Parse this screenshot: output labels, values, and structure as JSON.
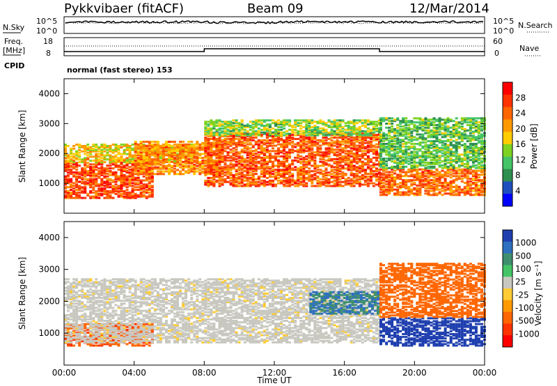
{
  "header": {
    "radar": "Pykkvibaer (fitACF)",
    "beam": "Beam 09",
    "date": "12/Mar/2014"
  },
  "noise_panel": {
    "left_label": "N.Sky",
    "right_label": "N.Search",
    "left_ticks": [
      "10^5",
      "10^0"
    ],
    "right_ticks": [
      "10^5",
      "10^0"
    ]
  },
  "freq_panel": {
    "left_label_1": "Freq.",
    "left_label_2": "[MHz]",
    "right_label": "Nave",
    "left_ticks": [
      "18",
      "8"
    ],
    "right_ticks": [
      "60",
      "0"
    ]
  },
  "cpid": {
    "label": "CPID",
    "text": "normal (fast stereo) 153"
  },
  "chart_data": [
    {
      "type": "heatmap",
      "name": "power",
      "xlabel": "Time UT",
      "ylabel": "Slant Range [km]",
      "colorbar_label": "Power [dB]",
      "x_ticks": [
        "00:00",
        "04:00",
        "08:00",
        "12:00",
        "16:00",
        "20:00",
        "00:00"
      ],
      "xlim_hours": [
        0,
        24
      ],
      "ylim": [
        0,
        4500
      ],
      "y_ticks": [
        "1000",
        "2000",
        "3000",
        "4000"
      ],
      "colorbar_ticks": [
        "4",
        "8",
        "12",
        "16",
        "20",
        "24",
        "28"
      ],
      "colorbar_range": [
        0,
        32
      ],
      "colors": [
        "#0000ff",
        "#1f4fbf",
        "#2f8f4f",
        "#44c466",
        "#7ed321",
        "#ffcc00",
        "#ff9900",
        "#ff6600",
        "#ff3300",
        "#ff0000"
      ],
      "echo_bands": [
        {
          "t_start": 0.0,
          "t_end": 5.0,
          "r_low": 500,
          "r_high": 1700,
          "level": 26
        },
        {
          "t_start": 0.0,
          "t_end": 7.5,
          "r_low": 1700,
          "r_high": 2300,
          "level": 18
        },
        {
          "t_start": 4.0,
          "t_end": 9.0,
          "r_low": 1300,
          "r_high": 2400,
          "level": 22
        },
        {
          "t_start": 8.0,
          "t_end": 18.0,
          "r_low": 900,
          "r_high": 2700,
          "level": 25
        },
        {
          "t_start": 8.0,
          "t_end": 18.0,
          "r_low": 2600,
          "r_high": 3100,
          "level": 14
        },
        {
          "t_start": 18.0,
          "t_end": 24.0,
          "r_low": 600,
          "r_high": 1500,
          "level": 24
        },
        {
          "t_start": 18.0,
          "t_end": 24.0,
          "r_low": 1500,
          "r_high": 3200,
          "level": 12
        }
      ]
    },
    {
      "type": "heatmap",
      "name": "velocity",
      "xlabel": "Time UT",
      "ylabel": "Slant Range [km]",
      "colorbar_label": "Velocity [m s⁻¹]",
      "x_ticks": [
        "00:00",
        "04:00",
        "08:00",
        "12:00",
        "16:00",
        "20:00",
        "00:00"
      ],
      "xlim_hours": [
        0,
        24
      ],
      "ylim": [
        0,
        4500
      ],
      "y_ticks": [
        "1000",
        "2000",
        "3000",
        "4000"
      ],
      "colorbar_ticks": [
        "1000",
        "500",
        "100",
        "25",
        "-25",
        "-100",
        "-500",
        "-1000"
      ],
      "colors": [
        "#1f3faf",
        "#2f6fbf",
        "#3f8f6f",
        "#44c466",
        "#c8c8c0",
        "#ffcc33",
        "#ff9900",
        "#ff6600",
        "#ff3300",
        "#ff0000"
      ],
      "echo_bands": [
        {
          "t_start": 0.0,
          "t_end": 5.0,
          "r_low": 600,
          "r_high": 1300,
          "velocity": -300
        },
        {
          "t_start": 0.0,
          "t_end": 18.0,
          "r_low": 700,
          "r_high": 2700,
          "velocity": 0
        },
        {
          "t_start": 14.0,
          "t_end": 18.0,
          "r_low": 1600,
          "r_high": 2300,
          "velocity": 300
        },
        {
          "t_start": 18.0,
          "t_end": 24.0,
          "r_low": 600,
          "r_high": 1500,
          "velocity": 800
        },
        {
          "t_start": 18.0,
          "t_end": 24.0,
          "r_low": 1500,
          "r_high": 3200,
          "velocity": -150
        }
      ]
    }
  ]
}
